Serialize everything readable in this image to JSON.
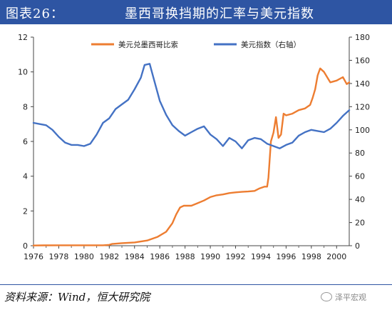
{
  "header": {
    "label": "图表26：",
    "title": "墨西哥换挡期的汇率与美元指数"
  },
  "colors": {
    "title_bg": "#2e55a3",
    "mxn": "#ed7d31",
    "dxy": "#4472c4"
  },
  "footer": {
    "source": "资料来源：Wind，恒大研究院",
    "watermark": "泽平宏观",
    "watermark_icon": "wechat-icon"
  },
  "chart_data": {
    "type": "line",
    "x_ticks": [
      "1976",
      "1978",
      "1980",
      "1982",
      "1984",
      "1986",
      "1988",
      "1990",
      "1992",
      "1994",
      "1996",
      "1998",
      "2000"
    ],
    "xlim": [
      1976,
      2001
    ],
    "ylim_left": [
      0,
      12
    ],
    "ylim_right": [
      0,
      180
    ],
    "y_ticks_left": [
      "0",
      "2",
      "4",
      "6",
      "8",
      "10",
      "12"
    ],
    "y_ticks_right": [
      "0",
      "20",
      "40",
      "60",
      "80",
      "100",
      "120",
      "140",
      "160",
      "180"
    ],
    "legend": "top-center",
    "series": [
      {
        "name": "美元兑墨西哥比索",
        "axis": "left",
        "points": [
          [
            1976.0,
            0.0125
          ],
          [
            1976.8,
            0.02
          ],
          [
            1978.0,
            0.023
          ],
          [
            1980.0,
            0.023
          ],
          [
            1981.5,
            0.026
          ],
          [
            1982.0,
            0.05
          ],
          [
            1982.2,
            0.1
          ],
          [
            1983.0,
            0.15
          ],
          [
            1984.0,
            0.19
          ],
          [
            1985.0,
            0.3
          ],
          [
            1985.8,
            0.5
          ],
          [
            1986.5,
            0.8
          ],
          [
            1987.0,
            1.3
          ],
          [
            1987.3,
            1.8
          ],
          [
            1987.6,
            2.2
          ],
          [
            1987.9,
            2.3
          ],
          [
            1988.5,
            2.3
          ],
          [
            1989.0,
            2.45
          ],
          [
            1989.5,
            2.6
          ],
          [
            1990.0,
            2.8
          ],
          [
            1990.5,
            2.9
          ],
          [
            1991.0,
            2.95
          ],
          [
            1991.5,
            3.03
          ],
          [
            1992.0,
            3.07
          ],
          [
            1992.5,
            3.1
          ],
          [
            1993.0,
            3.12
          ],
          [
            1993.5,
            3.15
          ],
          [
            1993.9,
            3.3
          ],
          [
            1994.3,
            3.4
          ],
          [
            1994.5,
            3.4
          ],
          [
            1994.6,
            3.9
          ],
          [
            1994.8,
            6.0
          ],
          [
            1995.0,
            6.5
          ],
          [
            1995.2,
            7.4
          ],
          [
            1995.4,
            6.2
          ],
          [
            1995.6,
            6.4
          ],
          [
            1995.8,
            7.6
          ],
          [
            1996.0,
            7.5
          ],
          [
            1996.5,
            7.6
          ],
          [
            1997.0,
            7.8
          ],
          [
            1997.5,
            7.9
          ],
          [
            1997.9,
            8.1
          ],
          [
            1998.1,
            8.5
          ],
          [
            1998.3,
            9.0
          ],
          [
            1998.5,
            9.8
          ],
          [
            1998.7,
            10.2
          ],
          [
            1999.0,
            10.0
          ],
          [
            1999.5,
            9.4
          ],
          [
            2000.0,
            9.5
          ],
          [
            2000.5,
            9.7
          ],
          [
            2000.8,
            9.3
          ],
          [
            2001.0,
            9.4
          ]
        ]
      },
      {
        "name": "美元指数（右轴）",
        "axis": "right",
        "points": [
          [
            1976.0,
            106
          ],
          [
            1976.5,
            105
          ],
          [
            1977.0,
            104
          ],
          [
            1977.5,
            100
          ],
          [
            1978.0,
            94
          ],
          [
            1978.5,
            89
          ],
          [
            1979.0,
            87
          ],
          [
            1979.5,
            87
          ],
          [
            1980.0,
            86
          ],
          [
            1980.5,
            88
          ],
          [
            1981.0,
            96
          ],
          [
            1981.5,
            106
          ],
          [
            1982.0,
            110
          ],
          [
            1982.5,
            118
          ],
          [
            1983.0,
            122
          ],
          [
            1983.5,
            126
          ],
          [
            1984.0,
            135
          ],
          [
            1984.5,
            145
          ],
          [
            1984.8,
            156
          ],
          [
            1985.2,
            157
          ],
          [
            1985.5,
            145
          ],
          [
            1986.0,
            125
          ],
          [
            1986.5,
            113
          ],
          [
            1987.0,
            104
          ],
          [
            1987.5,
            99
          ],
          [
            1988.0,
            95
          ],
          [
            1988.5,
            98
          ],
          [
            1989.0,
            101
          ],
          [
            1989.5,
            103
          ],
          [
            1990.0,
            96
          ],
          [
            1990.5,
            92
          ],
          [
            1991.0,
            86
          ],
          [
            1991.5,
            93
          ],
          [
            1992.0,
            90
          ],
          [
            1992.5,
            84
          ],
          [
            1993.0,
            91
          ],
          [
            1993.5,
            93
          ],
          [
            1994.0,
            92
          ],
          [
            1994.5,
            88
          ],
          [
            1995.0,
            86
          ],
          [
            1995.5,
            84
          ],
          [
            1996.0,
            87
          ],
          [
            1996.5,
            89
          ],
          [
            1997.0,
            95
          ],
          [
            1997.5,
            98
          ],
          [
            1998.0,
            100
          ],
          [
            1998.5,
            99
          ],
          [
            1999.0,
            98
          ],
          [
            1999.5,
            101
          ],
          [
            2000.0,
            106
          ],
          [
            2000.5,
            112
          ],
          [
            2001.0,
            117
          ]
        ]
      }
    ]
  }
}
